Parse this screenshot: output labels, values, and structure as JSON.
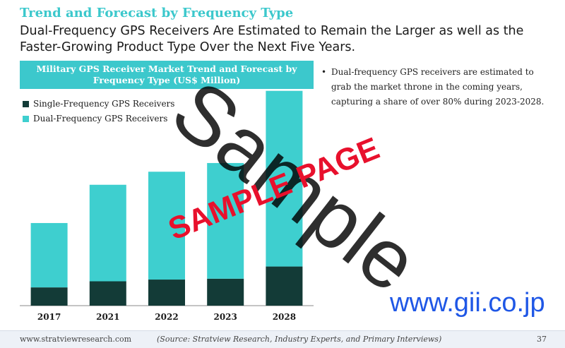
{
  "header": {
    "title": "Trend and Forecast by Frequency Type",
    "subtitle": "Dual-Frequency GPS Receivers Are Estimated to Remain the Larger as well as the Faster-Growing Product Type Over the Next Five Years."
  },
  "bullets": [
    "Dual-frequency GPS receivers are estimated to grab the market throne in the coming years, capturing a share of over 80% during 2023-2028."
  ],
  "chart_data": {
    "type": "bar",
    "stacked": true,
    "title": "Military GPS Receiver Market Trend and Forecast by Frequency Type (US$ Million)",
    "categories": [
      "2017",
      "2021",
      "2022",
      "2023",
      "2028"
    ],
    "series": [
      {
        "name": "Single-Frequency GPS Receivers",
        "values": [
          21,
          28,
          30,
          31,
          45
        ],
        "color": "#133b37"
      },
      {
        "name": "Dual-Frequency GPS Receivers",
        "values": [
          74,
          111,
          124,
          133,
          202
        ],
        "color": "#3ecfcf"
      }
    ],
    "ylim": [
      0,
      250
    ],
    "y_axis_visible": false,
    "grid": false,
    "legend_position": "top-left"
  },
  "footer": {
    "website": "www.stratviewresearch.com",
    "source": "(Source: Stratview Research, Industry Experts, and Primary Interviews)",
    "page_number": "37"
  },
  "watermarks": {
    "sample": "Sample",
    "sample_page": "SAMPLE PAGE",
    "url": "www.gii.co.jp"
  }
}
